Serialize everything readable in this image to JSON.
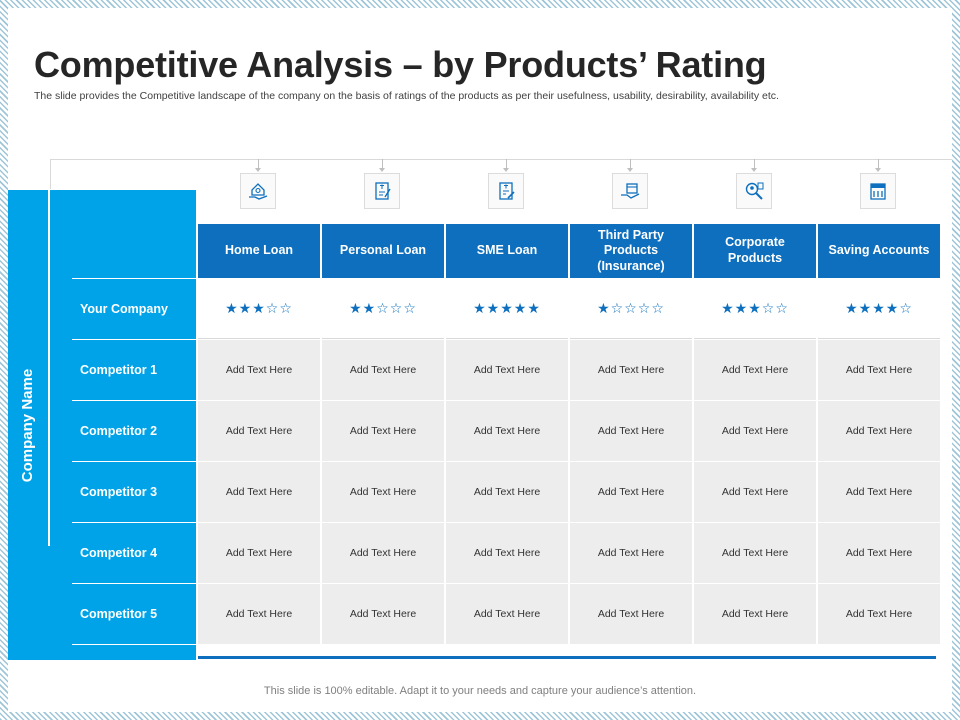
{
  "title": "Competitive Analysis – by Products’ Rating",
  "subtitle": "The slide provides the Competitive landscape of the company on the basis of ratings of the products as per their usefulness, usability, desirability, availability etc.",
  "side_label": "Company Name",
  "columns": [
    {
      "label": "Home Loan",
      "icon": "house-in-hand-icon"
    },
    {
      "label": "Personal Loan",
      "icon": "loan-document-icon"
    },
    {
      "label": "SME Loan",
      "icon": "loan-agreement-icon"
    },
    {
      "label": "Third Party Products (Insurance)",
      "icon": "insurance-hand-icon"
    },
    {
      "label": "Corporate Products",
      "icon": "corporate-search-icon"
    },
    {
      "label": "Saving Accounts",
      "icon": "bank-account-icon"
    }
  ],
  "your_company": {
    "label": "Your Company",
    "ratings": [
      3,
      2,
      5,
      1,
      3,
      4
    ],
    "max_rating": 5
  },
  "competitors": [
    {
      "label": "Competitor 1",
      "cells": [
        "Add Text Here",
        "Add Text Here",
        "Add Text Here",
        "Add Text Here",
        "Add Text Here",
        "Add Text Here"
      ]
    },
    {
      "label": "Competitor 2",
      "cells": [
        "Add Text Here",
        "Add Text Here",
        "Add Text Here",
        "Add Text Here",
        "Add Text Here",
        "Add Text Here"
      ]
    },
    {
      "label": "Competitor 3",
      "cells": [
        "Add Text Here",
        "Add Text Here",
        "Add Text Here",
        "Add Text Here",
        "Add Text Here",
        "Add Text Here"
      ]
    },
    {
      "label": "Competitor 4",
      "cells": [
        "Add Text Here",
        "Add Text Here",
        "Add Text Here",
        "Add Text Here",
        "Add Text Here",
        "Add Text Here"
      ]
    },
    {
      "label": "Competitor 5",
      "cells": [
        "Add Text Here",
        "Add Text Here",
        "Add Text Here",
        "Add Text Here",
        "Add Text Here",
        "Add Text Here"
      ]
    }
  ],
  "footer": "This slide is 100% editable. Adapt it to your needs and capture your audience’s attention.",
  "colors": {
    "header_blue": "#0d6fbe",
    "band_blue": "#00a3e8",
    "cell_gray": "#ededed"
  }
}
